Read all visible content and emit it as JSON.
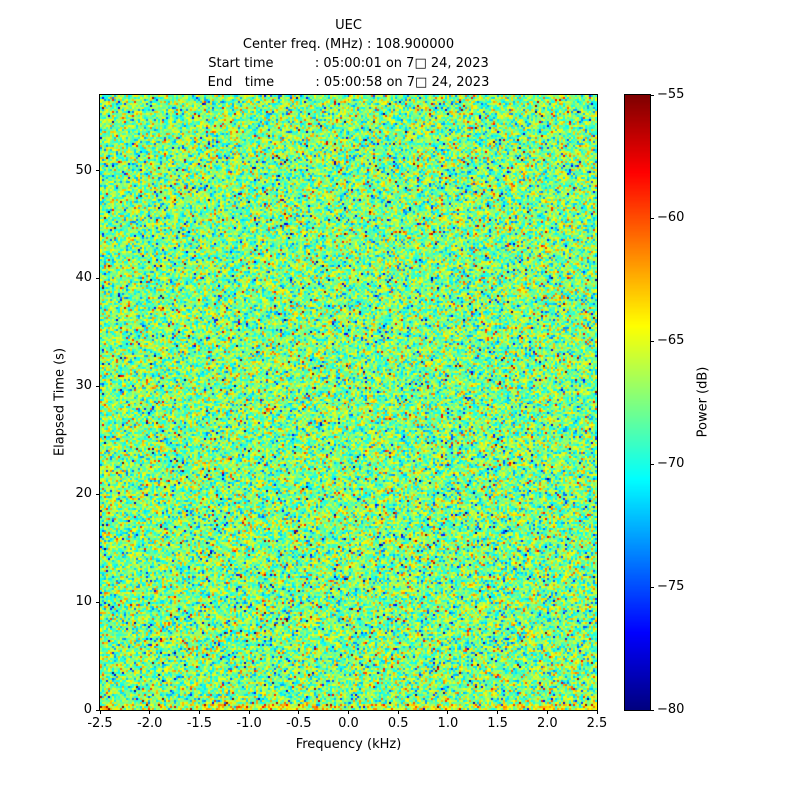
{
  "header": {
    "title": "UEC",
    "center_freq_line": "Center freq. (MHz) : 108.900000",
    "start_time_line": "Start time          : 05:00:01 on 7□ 24, 2023",
    "end_time_line": "End   time          : 05:00:58 on 7□ 24, 2023"
  },
  "axes": {
    "xlabel": "Frequency (kHz)",
    "ylabel": "Elapsed Time (s)"
  },
  "colors": {
    "figure_bg": "#ffffff",
    "axes_fg": "#000000"
  },
  "chart_data": {
    "type": "heatmap",
    "title": "UEC",
    "subtitle_lines": [
      "Center freq. (MHz) : 108.900000",
      "Start time          : 05:00:01 on 7□ 24, 2023",
      "End   time          : 05:00:58 on 7□ 24, 2023"
    ],
    "xlabel": "Frequency (kHz)",
    "ylabel": "Elapsed Time (s)",
    "xlim": [
      -2.5,
      2.5
    ],
    "ylim": [
      0,
      57
    ],
    "x_ticks": {
      "values": [
        -2.5,
        -2.0,
        -1.5,
        -1.0,
        -0.5,
        0.0,
        0.5,
        1.0,
        1.5,
        2.0,
        2.5
      ],
      "labels": [
        "-2.5",
        "-2.0",
        "-1.5",
        "-1.0",
        "-0.5",
        "0.0",
        "0.5",
        "1.0",
        "1.5",
        "2.0",
        "2.5"
      ]
    },
    "y_ticks": {
      "values": [
        0,
        10,
        20,
        30,
        40,
        50
      ],
      "labels": [
        "0",
        "10",
        "20",
        "30",
        "40",
        "50"
      ]
    },
    "colorbar": {
      "label": "Power (dB)",
      "vmin": -80,
      "vmax": -55,
      "tick_values": [
        -55,
        -60,
        -65,
        -70,
        -75,
        -80
      ],
      "tick_labels": [
        "−55",
        "−60",
        "−65",
        "−70",
        "−75",
        "−80"
      ],
      "colormap": "jet"
    },
    "content": "incoherent wideband RF noise across the full band; no coherent signal; slightly hotter (orange) speckle band along the bottom rows near t = 0 s",
    "noise_model": {
      "mean_db": -67.5,
      "sd_db": 2.7,
      "outlier_prob": 0.025,
      "outlier_extra_db": 7,
      "bottom_rows_boost_db": 3,
      "seed": 1337,
      "cols": 249,
      "rows": 308
    }
  }
}
